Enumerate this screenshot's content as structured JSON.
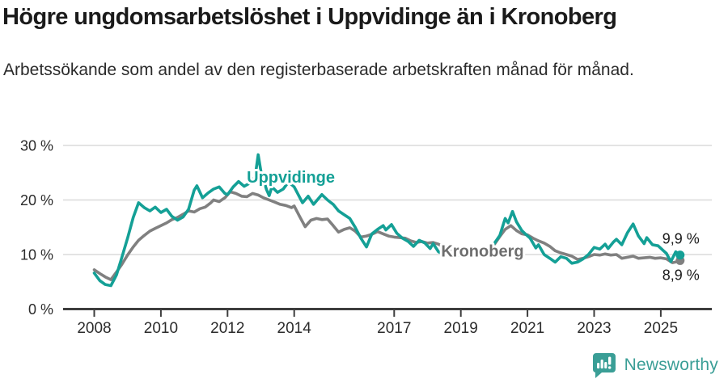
{
  "header": {
    "title": "Högre ungdomsarbetslöshet i Uppvidinge än i Kronoberg",
    "subtitle": "Arbetssökande som andel av den registerbaserade arbetskraften månad för månad."
  },
  "chart_data": {
    "type": "line",
    "title": "Högre ungdomsarbetslöshet i Uppvidinge än i Kronoberg",
    "subtitle": "Arbetssökande som andel av den registerbaserade arbetskraften månad för månad.",
    "x_unit": "decimal_year",
    "xlim": [
      2007.6,
      2026.1
    ],
    "ylim": [
      0,
      30
    ],
    "y_ticks": [
      0,
      10,
      20,
      30
    ],
    "y_tick_labels": [
      "0 %",
      "10 %",
      "20 %",
      "30 %"
    ],
    "x_ticks": [
      2008,
      2010,
      2012,
      2014,
      2017,
      2019,
      2021,
      2023,
      2025
    ],
    "x_tick_labels": [
      "2008",
      "2010",
      "2012",
      "2014",
      "2017",
      "2019",
      "2021",
      "2023",
      "2025"
    ],
    "grid": "horizontal",
    "legend_position": "inline-labels",
    "axis_color": "#3d3d3d",
    "grid_color": "#dadada",
    "tick_label_color": "#2b2b2b",
    "series": [
      {
        "name": "Kronoberg",
        "color": "#808080",
        "label_color": "#6e6e6e",
        "label_pos": [
          2019.65,
          10.7
        ],
        "end_value": 8.9,
        "end_label": "8,9 %",
        "points": [
          [
            2008.0,
            7.2
          ],
          [
            2008.17,
            6.5
          ],
          [
            2008.33,
            5.9
          ],
          [
            2008.5,
            5.4
          ],
          [
            2008.67,
            6.8
          ],
          [
            2008.83,
            8.2
          ],
          [
            2009.0,
            9.9
          ],
          [
            2009.17,
            11.4
          ],
          [
            2009.33,
            12.6
          ],
          [
            2009.5,
            13.5
          ],
          [
            2009.67,
            14.3
          ],
          [
            2009.83,
            14.8
          ],
          [
            2010.0,
            15.3
          ],
          [
            2010.17,
            15.8
          ],
          [
            2010.33,
            16.4
          ],
          [
            2010.5,
            16.8
          ],
          [
            2010.67,
            17.4
          ],
          [
            2010.83,
            18.0
          ],
          [
            2011.0,
            17.8
          ],
          [
            2011.17,
            18.4
          ],
          [
            2011.33,
            18.7
          ],
          [
            2011.5,
            19.5
          ],
          [
            2011.58,
            20.0
          ],
          [
            2011.75,
            19.7
          ],
          [
            2011.92,
            20.4
          ],
          [
            2012.08,
            21.5
          ],
          [
            2012.25,
            21.2
          ],
          [
            2012.42,
            20.7
          ],
          [
            2012.58,
            20.6
          ],
          [
            2012.75,
            21.2
          ],
          [
            2012.92,
            20.9
          ],
          [
            2013.08,
            20.4
          ],
          [
            2013.25,
            20.0
          ],
          [
            2013.42,
            19.6
          ],
          [
            2013.58,
            19.2
          ],
          [
            2013.75,
            19.0
          ],
          [
            2013.92,
            18.6
          ],
          [
            2014.0,
            18.9
          ],
          [
            2014.17,
            16.9
          ],
          [
            2014.33,
            15.1
          ],
          [
            2014.5,
            16.3
          ],
          [
            2014.67,
            16.6
          ],
          [
            2014.83,
            16.4
          ],
          [
            2015.0,
            16.5
          ],
          [
            2015.17,
            15.3
          ],
          [
            2015.33,
            14.1
          ],
          [
            2015.5,
            14.6
          ],
          [
            2015.67,
            14.9
          ],
          [
            2015.83,
            14.3
          ],
          [
            2016.0,
            13.2
          ],
          [
            2016.17,
            13.4
          ],
          [
            2016.33,
            13.7
          ],
          [
            2016.5,
            14.2
          ],
          [
            2016.67,
            13.8
          ],
          [
            2016.83,
            13.4
          ],
          [
            2017.0,
            13.2
          ],
          [
            2017.17,
            13.1
          ],
          [
            2017.33,
            13.0
          ],
          [
            2017.5,
            12.5
          ],
          [
            2017.67,
            12.2
          ],
          [
            2017.83,
            12.4
          ],
          [
            2018.0,
            12.1
          ],
          [
            2018.17,
            12.2
          ],
          [
            2018.33,
            11.9
          ],
          [
            2018.5,
            11.3
          ],
          [
            2018.67,
            10.9
          ],
          [
            2018.83,
            10.6
          ],
          [
            2019.0,
            10.4
          ],
          [
            2019.17,
            10.2
          ],
          [
            2019.33,
            10.0
          ],
          [
            2019.5,
            9.9
          ],
          [
            2019.67,
            10.1
          ],
          [
            2019.83,
            10.8
          ],
          [
            2020.0,
            11.8
          ],
          [
            2020.17,
            13.3
          ],
          [
            2020.33,
            14.6
          ],
          [
            2020.5,
            15.3
          ],
          [
            2020.67,
            14.4
          ],
          [
            2020.83,
            13.8
          ],
          [
            2021.0,
            13.6
          ],
          [
            2021.17,
            13.0
          ],
          [
            2021.33,
            12.5
          ],
          [
            2021.5,
            12.1
          ],
          [
            2021.67,
            11.5
          ],
          [
            2021.83,
            10.7
          ],
          [
            2022.0,
            10.3
          ],
          [
            2022.17,
            10.0
          ],
          [
            2022.33,
            9.7
          ],
          [
            2022.5,
            9.1
          ],
          [
            2022.67,
            9.3
          ],
          [
            2022.83,
            9.6
          ],
          [
            2023.0,
            10.0
          ],
          [
            2023.17,
            9.9
          ],
          [
            2023.33,
            10.1
          ],
          [
            2023.5,
            9.9
          ],
          [
            2023.67,
            10.0
          ],
          [
            2023.83,
            9.3
          ],
          [
            2024.0,
            9.5
          ],
          [
            2024.17,
            9.7
          ],
          [
            2024.33,
            9.3
          ],
          [
            2024.5,
            9.4
          ],
          [
            2024.67,
            9.5
          ],
          [
            2024.83,
            9.3
          ],
          [
            2025.0,
            9.4
          ],
          [
            2025.17,
            9.2
          ],
          [
            2025.35,
            8.5
          ],
          [
            2025.5,
            8.7
          ],
          [
            2025.58,
            8.9
          ]
        ]
      },
      {
        "name": "Uppvidinge",
        "color": "#14a096",
        "label_color": "#14a096",
        "label_pos": [
          2013.9,
          24.2
        ],
        "end_value": 9.9,
        "end_label": "9,9 %",
        "points": [
          [
            2008.0,
            6.6
          ],
          [
            2008.17,
            5.2
          ],
          [
            2008.33,
            4.5
          ],
          [
            2008.5,
            4.3
          ],
          [
            2008.67,
            6.3
          ],
          [
            2008.83,
            9.5
          ],
          [
            2009.0,
            13.0
          ],
          [
            2009.17,
            16.8
          ],
          [
            2009.33,
            19.5
          ],
          [
            2009.5,
            18.6
          ],
          [
            2009.67,
            18.0
          ],
          [
            2009.83,
            18.7
          ],
          [
            2010.0,
            17.7
          ],
          [
            2010.17,
            18.3
          ],
          [
            2010.33,
            17.0
          ],
          [
            2010.5,
            16.3
          ],
          [
            2010.67,
            16.9
          ],
          [
            2010.83,
            18.3
          ],
          [
            2011.0,
            21.8
          ],
          [
            2011.08,
            22.6
          ],
          [
            2011.25,
            20.4
          ],
          [
            2011.42,
            21.3
          ],
          [
            2011.58,
            22.0
          ],
          [
            2011.75,
            22.4
          ],
          [
            2011.92,
            21.2
          ],
          [
            2012.0,
            21.0
          ],
          [
            2012.17,
            22.4
          ],
          [
            2012.33,
            23.4
          ],
          [
            2012.5,
            22.5
          ],
          [
            2012.67,
            23.1
          ],
          [
            2012.83,
            24.4
          ],
          [
            2012.92,
            28.3
          ],
          [
            2013.0,
            25.3
          ],
          [
            2013.17,
            21.9
          ],
          [
            2013.25,
            20.8
          ],
          [
            2013.33,
            22.4
          ],
          [
            2013.5,
            21.4
          ],
          [
            2013.67,
            22.0
          ],
          [
            2013.83,
            23.3
          ],
          [
            2014.0,
            22.4
          ],
          [
            2014.25,
            19.5
          ],
          [
            2014.42,
            20.7
          ],
          [
            2014.58,
            19.2
          ],
          [
            2014.83,
            21.0
          ],
          [
            2015.0,
            20.0
          ],
          [
            2015.17,
            19.2
          ],
          [
            2015.33,
            18.0
          ],
          [
            2015.5,
            17.3
          ],
          [
            2015.67,
            16.6
          ],
          [
            2015.83,
            15.0
          ],
          [
            2016.0,
            13.0
          ],
          [
            2016.17,
            11.4
          ],
          [
            2016.33,
            13.8
          ],
          [
            2016.5,
            14.6
          ],
          [
            2016.67,
            15.3
          ],
          [
            2016.75,
            14.5
          ],
          [
            2016.92,
            15.5
          ],
          [
            2017.08,
            13.9
          ],
          [
            2017.25,
            13.0
          ],
          [
            2017.42,
            12.4
          ],
          [
            2017.58,
            11.5
          ],
          [
            2017.75,
            12.6
          ],
          [
            2017.92,
            12.1
          ],
          [
            2018.08,
            11.1
          ],
          [
            2018.17,
            12.0
          ],
          [
            2018.33,
            10.5
          ],
          [
            2018.5,
            10.0
          ],
          [
            2018.67,
            10.4
          ],
          [
            2018.83,
            10.0
          ],
          [
            2019.0,
            9.8
          ],
          [
            2019.17,
            10.2
          ],
          [
            2019.33,
            9.7
          ],
          [
            2019.5,
            10.0
          ],
          [
            2019.67,
            10.5
          ],
          [
            2019.83,
            11.0
          ],
          [
            2020.0,
            12.0
          ],
          [
            2020.17,
            13.5
          ],
          [
            2020.33,
            16.6
          ],
          [
            2020.42,
            15.8
          ],
          [
            2020.55,
            17.9
          ],
          [
            2020.67,
            16.0
          ],
          [
            2020.83,
            14.4
          ],
          [
            2020.95,
            13.7
          ],
          [
            2021.08,
            13.0
          ],
          [
            2021.25,
            11.2
          ],
          [
            2021.33,
            11.8
          ],
          [
            2021.5,
            10.0
          ],
          [
            2021.67,
            9.3
          ],
          [
            2021.83,
            8.6
          ],
          [
            2022.0,
            9.6
          ],
          [
            2022.17,
            9.3
          ],
          [
            2022.33,
            8.4
          ],
          [
            2022.5,
            8.6
          ],
          [
            2022.67,
            9.2
          ],
          [
            2022.83,
            10.0
          ],
          [
            2023.0,
            11.3
          ],
          [
            2023.17,
            11.0
          ],
          [
            2023.33,
            11.9
          ],
          [
            2023.42,
            11.1
          ],
          [
            2023.58,
            12.3
          ],
          [
            2023.67,
            12.8
          ],
          [
            2023.83,
            11.8
          ],
          [
            2024.0,
            14.0
          ],
          [
            2024.17,
            15.6
          ],
          [
            2024.33,
            13.4
          ],
          [
            2024.5,
            12.0
          ],
          [
            2024.58,
            13.1
          ],
          [
            2024.75,
            11.8
          ],
          [
            2024.92,
            11.6
          ],
          [
            2025.08,
            10.7
          ],
          [
            2025.17,
            10.2
          ],
          [
            2025.3,
            8.7
          ],
          [
            2025.45,
            10.5
          ],
          [
            2025.58,
            9.9
          ]
        ]
      }
    ]
  },
  "footer": {
    "brand": "Newsworthy",
    "brand_color": "#3a9e96",
    "logo_icon": "bar-chart-speech-bubble"
  }
}
